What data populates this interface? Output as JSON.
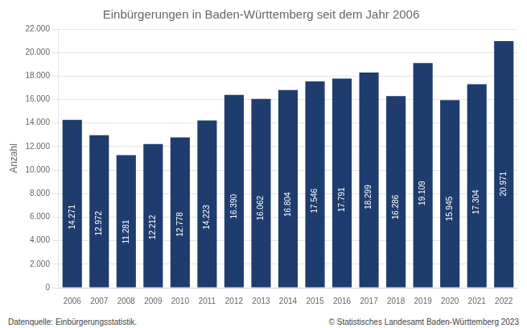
{
  "chart_data": {
    "type": "bar",
    "title": "Einbürgerungen in Baden-Württemberg seit dem Jahr 2006",
    "ylabel": "Anzahl",
    "categories": [
      "2006",
      "2007",
      "2008",
      "2009",
      "2010",
      "2011",
      "2012",
      "2013",
      "2014",
      "2015",
      "2016",
      "2017",
      "2018",
      "2019",
      "2020",
      "2021",
      "2022"
    ],
    "values": [
      14271,
      12972,
      11281,
      12212,
      12778,
      14223,
      16390,
      16062,
      16804,
      17546,
      17791,
      18299,
      16286,
      19109,
      15945,
      17304,
      20971
    ],
    "value_labels": [
      "14.271",
      "12.972",
      "11.281",
      "12.212",
      "12.778",
      "14.223",
      "16.390",
      "16.062",
      "16.804",
      "17.546",
      "17.791",
      "18.299",
      "16.286",
      "19.109",
      "15.945",
      "17.304",
      "20.971"
    ],
    "data_labels": true,
    "color": "#1f3c6e",
    "ylim": [
      0,
      22000
    ],
    "yticks": [
      0,
      {
        "value": 2000,
        "label": "2.000"
      },
      {
        "value": 4000,
        "label": "4.000"
      },
      {
        "value": 6000,
        "label": "6.000"
      },
      {
        "value": 8000,
        "label": "8.000"
      },
      {
        "value": 10000,
        "label": "10.000"
      },
      {
        "value": 12000,
        "label": "12.000"
      },
      {
        "value": 14000,
        "label": "14.000"
      },
      {
        "value": 16000,
        "label": "16.000"
      },
      {
        "value": 18000,
        "label": "18.000"
      },
      {
        "value": 20000,
        "label": "20.000"
      },
      {
        "value": 22000,
        "label": "22.000"
      }
    ],
    "grid": true,
    "footnotes": [
      "Datenquelle: Einbürgerungsstatistik.",
      "© Statistisches Landesamt Baden-Württemberg 2023"
    ]
  }
}
